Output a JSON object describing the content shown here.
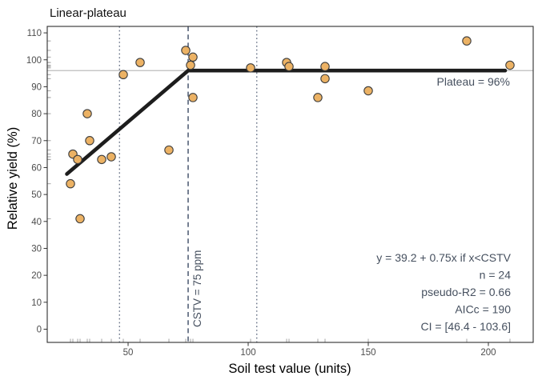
{
  "chart_data": {
    "type": "scatter",
    "title": "Linear-plateau",
    "xlabel": "Soil test value (units)",
    "ylabel": "Relative yield (%)",
    "xlim": [
      16.33,
      218.67
    ],
    "ylim": [
      -4.9,
      112.4
    ],
    "x_ticks": [
      50,
      100,
      150,
      200
    ],
    "y_ticks": [
      0,
      10,
      20,
      30,
      40,
      50,
      60,
      70,
      80,
      90,
      100,
      110
    ],
    "grid": false,
    "points": [
      [
        26,
        54
      ],
      [
        27,
        65
      ],
      [
        29,
        63
      ],
      [
        30,
        41
      ],
      [
        33,
        80
      ],
      [
        34,
        70
      ],
      [
        39,
        63
      ],
      [
        43,
        64
      ],
      [
        48,
        94.5
      ],
      [
        55,
        99
      ],
      [
        67,
        66.5
      ],
      [
        74,
        103.5
      ],
      [
        76,
        98
      ],
      [
        77,
        101
      ],
      [
        77,
        86
      ],
      [
        101,
        97
      ],
      [
        116,
        99
      ],
      [
        117,
        97.5
      ],
      [
        129,
        86
      ],
      [
        132,
        97.5
      ],
      [
        132,
        93
      ],
      [
        150,
        88.5
      ],
      [
        191,
        107
      ],
      [
        209,
        98
      ]
    ],
    "fit_line": {
      "equation": "y = 39.2 + 0.75x if x<CSTV",
      "vertices": [
        [
          24.5,
          57.6
        ],
        [
          75,
          96
        ],
        [
          207,
          96
        ]
      ]
    },
    "plateau_hline": {
      "y": 96
    },
    "cstv_vline": {
      "x": 75,
      "label": "CSTV = 75 ppm"
    },
    "ci_vlines": [
      46.4,
      103.6
    ],
    "rug_sides": "bottom-left",
    "annotations": {
      "plateau_label": "Plateau = 96%",
      "stats_lines": [
        "y = 39.2 + 0.75x if x<CSTV",
        "n = 24",
        "pseudo-R2 = 0.66",
        "AICc = 190",
        "CI = [46.4 - 103.6]"
      ]
    },
    "stats": {
      "cstv": 75,
      "plateau_pct": 96,
      "n": 24,
      "pseudo_r2": 0.66,
      "aicc": 190,
      "ci_low": 46.4,
      "ci_high": 103.6
    },
    "colors": {
      "point_fill": "#ecb264",
      "point_stroke": "#3d3d3d",
      "fit_line": "#1d1d1d",
      "hline": "#bdbdbd",
      "vline": "#2c3b57",
      "rug": "#a3a3a3",
      "tick": "#333333",
      "tick_label": "#4d4d4d",
      "border": "#2e2e2e",
      "panel_bg": "#ffffff"
    }
  },
  "layout_note": "linear-plateau model fit figure"
}
